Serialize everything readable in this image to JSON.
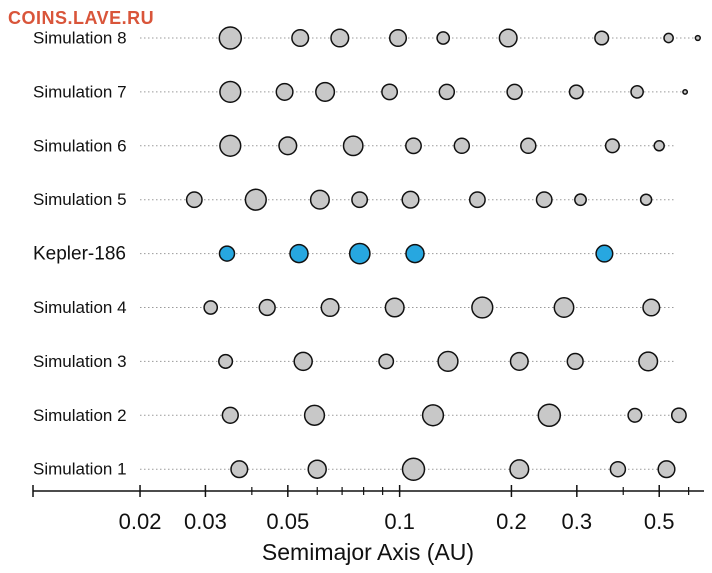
{
  "watermark": "COINS.LAVE.RU",
  "colors": {
    "planet": "#c8c8c8",
    "highlight": "#27a7e0",
    "outline": "#111111",
    "dotted": "#9a9a9a"
  },
  "chart_data": {
    "type": "scatter",
    "title": "",
    "xlabel": "Semimajor Axis (AU)",
    "ylabel": "",
    "xscale": "log",
    "xlim": [
      0.0103,
      0.66
    ],
    "xticks": [
      0.02,
      0.03,
      0.05,
      0.1,
      0.2,
      0.3,
      0.5
    ],
    "xtick_labels": [
      "0.02",
      "0.03",
      "0.05",
      "0.1",
      "0.2",
      "0.3",
      "0.5"
    ],
    "minor_ticks": [
      0.04,
      0.06,
      0.07,
      0.08,
      0.09,
      0.4,
      0.6
    ],
    "grid": false,
    "legend": "none",
    "rows": [
      {
        "name": "Simulation 8",
        "highlight": false,
        "planets": [
          {
            "a": 0.035,
            "r": 1.0
          },
          {
            "a": 0.054,
            "r": 0.75
          },
          {
            "a": 0.069,
            "r": 0.8
          },
          {
            "a": 0.099,
            "r": 0.75
          },
          {
            "a": 0.131,
            "r": 0.55
          },
          {
            "a": 0.196,
            "r": 0.8
          },
          {
            "a": 0.35,
            "r": 0.62
          },
          {
            "a": 0.53,
            "r": 0.42
          },
          {
            "a": 0.635,
            "r": 0.22
          }
        ]
      },
      {
        "name": "Simulation 7",
        "highlight": false,
        "planets": [
          {
            "a": 0.035,
            "r": 0.95
          },
          {
            "a": 0.049,
            "r": 0.75
          },
          {
            "a": 0.063,
            "r": 0.85
          },
          {
            "a": 0.094,
            "r": 0.7
          },
          {
            "a": 0.134,
            "r": 0.68
          },
          {
            "a": 0.204,
            "r": 0.68
          },
          {
            "a": 0.299,
            "r": 0.62
          },
          {
            "a": 0.436,
            "r": 0.55
          },
          {
            "a": 0.587,
            "r": 0.2
          }
        ]
      },
      {
        "name": "Simulation 6",
        "highlight": false,
        "planets": [
          {
            "a": 0.035,
            "r": 0.95
          },
          {
            "a": 0.05,
            "r": 0.8
          },
          {
            "a": 0.075,
            "r": 0.88
          },
          {
            "a": 0.109,
            "r": 0.7
          },
          {
            "a": 0.147,
            "r": 0.68
          },
          {
            "a": 0.222,
            "r": 0.68
          },
          {
            "a": 0.374,
            "r": 0.62
          },
          {
            "a": 0.5,
            "r": 0.45
          }
        ]
      },
      {
        "name": "Simulation 5",
        "highlight": false,
        "planets": [
          {
            "a": 0.028,
            "r": 0.7
          },
          {
            "a": 0.041,
            "r": 0.95
          },
          {
            "a": 0.061,
            "r": 0.85
          },
          {
            "a": 0.078,
            "r": 0.7
          },
          {
            "a": 0.107,
            "r": 0.75
          },
          {
            "a": 0.162,
            "r": 0.7
          },
          {
            "a": 0.245,
            "r": 0.7
          },
          {
            "a": 0.307,
            "r": 0.52
          },
          {
            "a": 0.461,
            "r": 0.5
          }
        ]
      },
      {
        "name": "Kepler-186",
        "highlight": true,
        "planets": [
          {
            "a": 0.0343,
            "r": 0.68
          },
          {
            "a": 0.0536,
            "r": 0.82
          },
          {
            "a": 0.0781,
            "r": 0.92
          },
          {
            "a": 0.11,
            "r": 0.82
          },
          {
            "a": 0.356,
            "r": 0.75
          }
        ]
      },
      {
        "name": "Simulation 4",
        "highlight": false,
        "planets": [
          {
            "a": 0.031,
            "r": 0.6
          },
          {
            "a": 0.044,
            "r": 0.72
          },
          {
            "a": 0.065,
            "r": 0.8
          },
          {
            "a": 0.097,
            "r": 0.85
          },
          {
            "a": 0.167,
            "r": 0.95
          },
          {
            "a": 0.277,
            "r": 0.88
          },
          {
            "a": 0.476,
            "r": 0.75
          }
        ]
      },
      {
        "name": "Simulation 3",
        "highlight": false,
        "planets": [
          {
            "a": 0.034,
            "r": 0.62
          },
          {
            "a": 0.055,
            "r": 0.82
          },
          {
            "a": 0.092,
            "r": 0.65
          },
          {
            "a": 0.135,
            "r": 0.9
          },
          {
            "a": 0.21,
            "r": 0.8
          },
          {
            "a": 0.297,
            "r": 0.72
          },
          {
            "a": 0.467,
            "r": 0.85
          }
        ]
      },
      {
        "name": "Simulation 2",
        "highlight": false,
        "planets": [
          {
            "a": 0.035,
            "r": 0.72
          },
          {
            "a": 0.059,
            "r": 0.9
          },
          {
            "a": 0.123,
            "r": 0.95
          },
          {
            "a": 0.253,
            "r": 1.0
          },
          {
            "a": 0.43,
            "r": 0.62
          },
          {
            "a": 0.565,
            "r": 0.65
          }
        ]
      },
      {
        "name": "Simulation 1",
        "highlight": false,
        "planets": [
          {
            "a": 0.037,
            "r": 0.75
          },
          {
            "a": 0.06,
            "r": 0.82
          },
          {
            "a": 0.109,
            "r": 1.0
          },
          {
            "a": 0.21,
            "r": 0.85
          },
          {
            "a": 0.387,
            "r": 0.68
          },
          {
            "a": 0.523,
            "r": 0.75
          }
        ]
      }
    ]
  }
}
